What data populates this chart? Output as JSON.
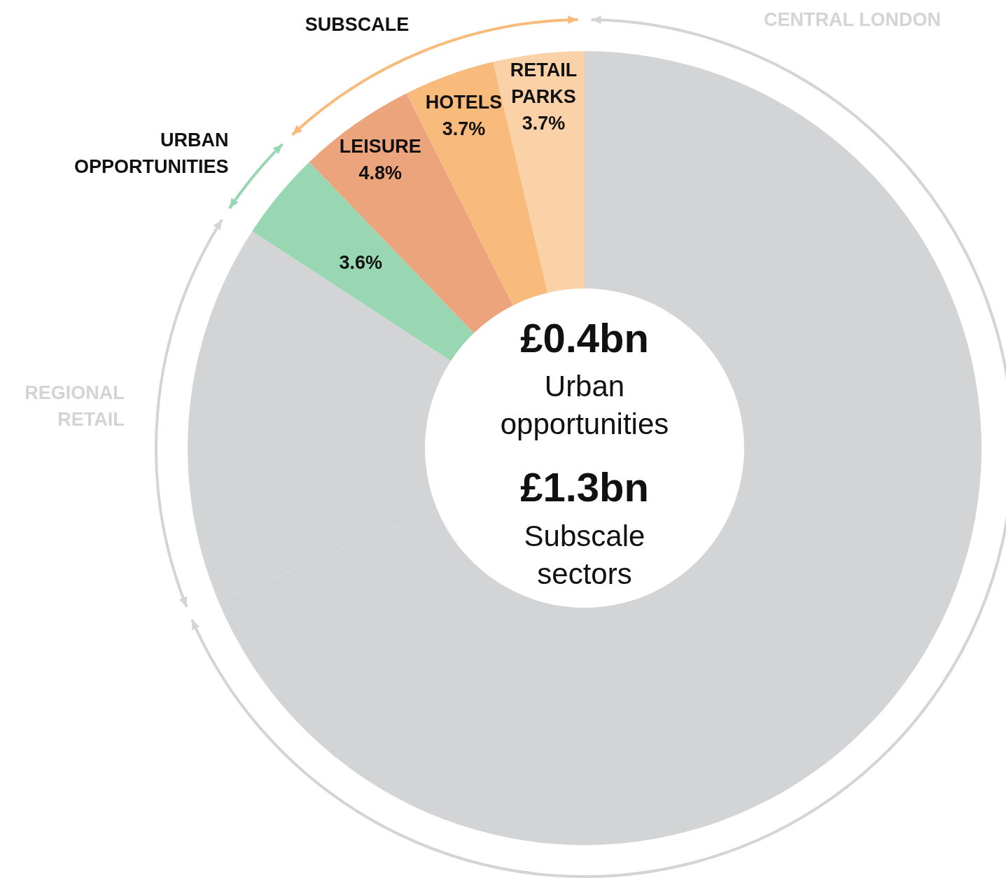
{
  "chart_data": {
    "type": "donut",
    "categories": [
      "CENTRAL LONDON",
      "REGIONAL RETAIL",
      "URBAN OPPORTUNITIES",
      "LEISURE",
      "HOTELS",
      "RETAIL PARKS"
    ],
    "values": [
      68.7,
      15.5,
      3.6,
      4.8,
      3.7,
      3.7
    ],
    "colors": [
      "#d3d4d6",
      "#d3d4d6",
      "#98d7b2",
      "#eca47c",
      "#f8bb7c",
      "#fbd2a8"
    ],
    "value_labels": [
      null,
      null,
      "3.6%",
      "4.8%",
      "3.7%",
      "3.7%"
    ],
    "annotations": [
      "SUBSCALE",
      "£0.4bn",
      "Urban opportunities",
      "£1.3bn",
      "Subscale sectors"
    ]
  }
}
